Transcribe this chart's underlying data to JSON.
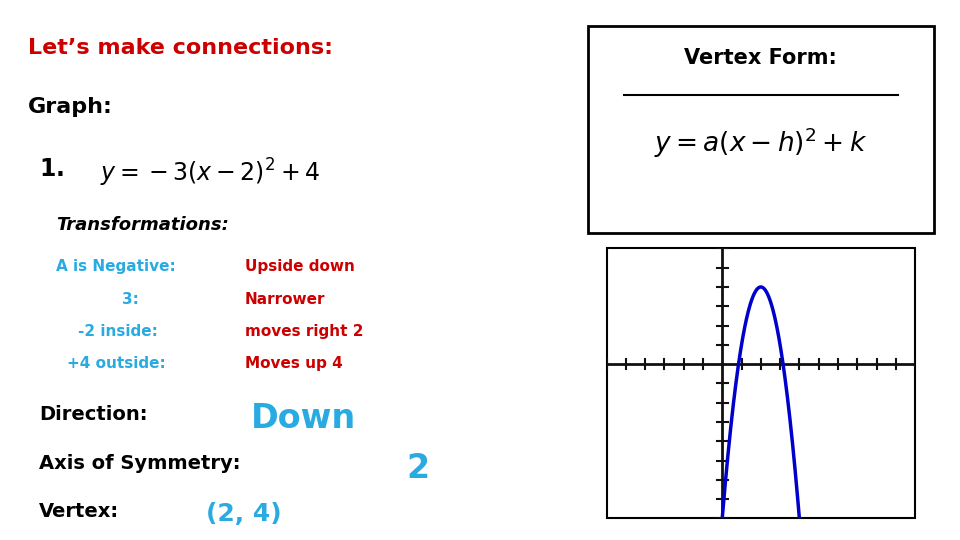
{
  "title": "Let’s make connections:",
  "title_color": "#cc0000",
  "bg_color": "#ffffff",
  "graph_label": "Graph:",
  "transformations_label": "Transformations:",
  "transform_lines": [
    {
      "left": "A is Negative:",
      "left_color": "#29abe2",
      "right": "Upside down",
      "right_color": "#cc0000"
    },
    {
      "left": "3:",
      "left_color": "#29abe2",
      "right": "Narrower",
      "right_color": "#cc0000"
    },
    {
      "left": "-2 inside:",
      "left_color": "#29abe2",
      "right": "moves right 2",
      "right_color": "#cc0000"
    },
    {
      "left": "+4 outside:",
      "left_color": "#29abe2",
      "right": "Moves up 4",
      "right_color": "#cc0000"
    }
  ],
  "direction_label": "Direction:",
  "direction_value": "Down",
  "axis_sym_label": "Axis of Symmetry:",
  "axis_sym_value": "2",
  "vertex_label": "Vertex:",
  "vertex_value": "(2, 4)",
  "vertex_form_title": "Vertex Form:",
  "vertex_form_eq": "$y = a(x-h)^2 + k$",
  "plot_xlim": [
    -6,
    10
  ],
  "plot_ylim": [
    -8,
    6
  ],
  "curve_color": "#0000cc",
  "curve_lw": 2.5,
  "axis_color": "#111111",
  "tick_color": "#111111"
}
